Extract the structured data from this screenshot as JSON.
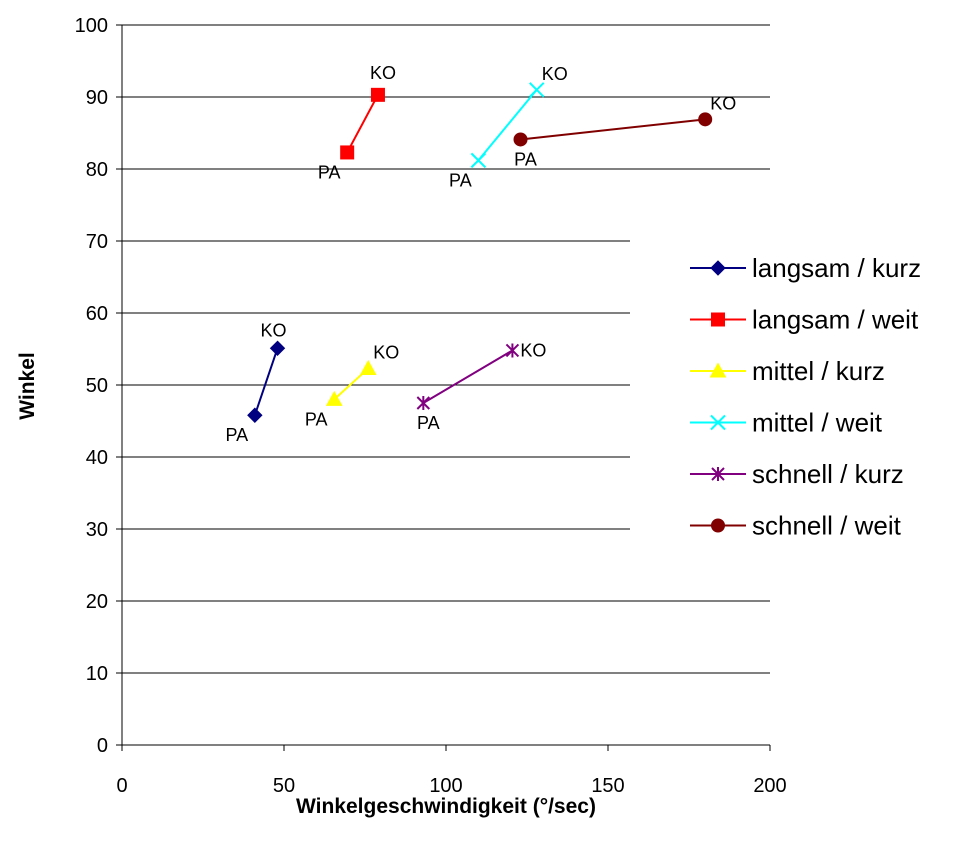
{
  "chart_data": {
    "type": "line",
    "title": "",
    "xlabel": "Winkelgeschwindigkeit (°/sec)",
    "ylabel": "Winkel",
    "xlim": [
      0,
      200
    ],
    "ylim": [
      0,
      100
    ],
    "xticks": [
      "0",
      "50",
      "100",
      "150",
      "200"
    ],
    "yticks": [
      "0",
      "10",
      "20",
      "30",
      "40",
      "50",
      "60",
      "70",
      "80",
      "90",
      "100"
    ],
    "grid": "horizontal",
    "legend": "right",
    "series": [
      {
        "name": "langsam / kurz",
        "color": "#000080",
        "marker": "diamond",
        "points": [
          {
            "x": 41,
            "y": 45.8,
            "label": "PA",
            "pos": "below-left"
          },
          {
            "x": 48,
            "y": 55.1,
            "label": "KO",
            "pos": "above-left"
          }
        ]
      },
      {
        "name": "langsam / weit",
        "color": "#ff0000",
        "marker": "square",
        "points": [
          {
            "x": 69.5,
            "y": 82.3,
            "label": "PA",
            "pos": "below-left"
          },
          {
            "x": 79,
            "y": 90.3,
            "label": "KO",
            "pos": "above"
          }
        ]
      },
      {
        "name": "mittel / kurz",
        "color": "#ffff00",
        "marker": "triangle",
        "points": [
          {
            "x": 65.5,
            "y": 48,
            "label": "PA",
            "pos": "below-left"
          },
          {
            "x": 76,
            "y": 52.3,
            "label": "KO",
            "pos": "above-right"
          }
        ]
      },
      {
        "name": "mittel / weit",
        "color": "#00ffff",
        "marker": "x",
        "points": [
          {
            "x": 110,
            "y": 81.2,
            "label": "PA",
            "pos": "below-left"
          },
          {
            "x": 128,
            "y": 91,
            "label": "KO",
            "pos": "above-right"
          }
        ]
      },
      {
        "name": "schnell / kurz",
        "color": "#800080",
        "marker": "star",
        "points": [
          {
            "x": 93,
            "y": 47.5,
            "label": "PA",
            "pos": "below"
          },
          {
            "x": 120.5,
            "y": 54.8,
            "label": "KO",
            "pos": "right"
          }
        ]
      },
      {
        "name": "schnell / weit",
        "color": "#800000",
        "marker": "circle",
        "points": [
          {
            "x": 123,
            "y": 84.1,
            "label": "PA",
            "pos": "below"
          },
          {
            "x": 180,
            "y": 86.9,
            "label": "KO",
            "pos": "above-right"
          }
        ]
      }
    ]
  }
}
